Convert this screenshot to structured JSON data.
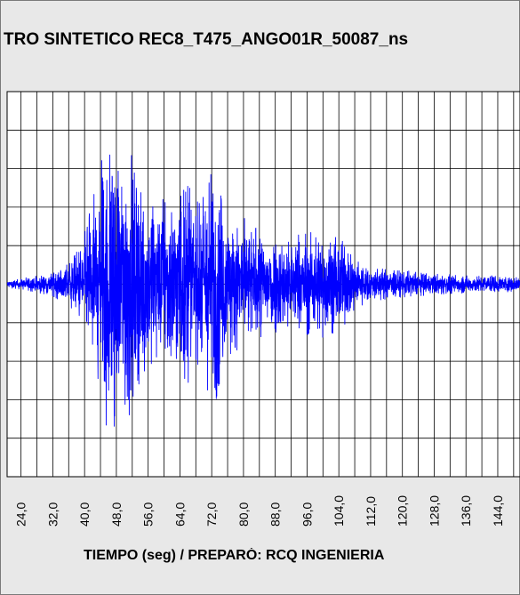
{
  "chart_data": {
    "type": "line",
    "title": "TRO SINTETICO REC8_T475_ANGO01R_50087_ns",
    "xlabel": "TIEMPO (seg) / PREPARÓ: RCQ INGENIERIA",
    "ylabel": "",
    "x_ticks": [
      "24,0",
      "32,0",
      "40,0",
      "48,0",
      "56,0",
      "64,0",
      "72,0",
      "80,0",
      "88,0",
      "96,0",
      "104,0",
      "112,0",
      "120,0",
      "128,0",
      "136,0",
      "144,0"
    ],
    "xlim": [
      20.5,
      149.6
    ],
    "ylim": [
      -1.1,
      1.1
    ],
    "grid": true,
    "line_color": "#0000ff",
    "series": [
      {
        "envelope": [
          [
            20.5,
            0.02
          ],
          [
            24,
            0.03
          ],
          [
            28,
            0.05
          ],
          [
            32,
            0.07
          ],
          [
            36,
            0.12
          ],
          [
            38,
            0.2
          ],
          [
            40,
            0.3
          ],
          [
            42,
            0.5
          ],
          [
            44,
            0.72
          ],
          [
            45,
            0.8
          ],
          [
            46,
            0.85
          ],
          [
            47,
            0.9
          ],
          [
            48,
            0.82
          ],
          [
            49,
            0.7
          ],
          [
            50,
            0.78
          ],
          [
            51,
            0.95
          ],
          [
            52,
            0.72
          ],
          [
            53,
            0.62
          ],
          [
            54,
            0.55
          ],
          [
            56,
            0.52
          ],
          [
            58,
            0.48
          ],
          [
            60,
            0.5
          ],
          [
            62,
            0.52
          ],
          [
            64,
            0.58
          ],
          [
            66,
            0.6
          ],
          [
            68,
            0.48
          ],
          [
            70,
            0.55
          ],
          [
            72,
            0.72
          ],
          [
            73,
            0.78
          ],
          [
            74,
            0.58
          ],
          [
            76,
            0.42
          ],
          [
            78,
            0.38
          ],
          [
            80,
            0.38
          ],
          [
            84,
            0.33
          ],
          [
            88,
            0.3
          ],
          [
            92,
            0.28
          ],
          [
            96,
            0.3
          ],
          [
            100,
            0.32
          ],
          [
            104,
            0.28
          ],
          [
            106,
            0.22
          ],
          [
            108,
            0.15
          ],
          [
            112,
            0.1
          ],
          [
            116,
            0.09
          ],
          [
            120,
            0.08
          ],
          [
            124,
            0.07
          ],
          [
            128,
            0.06
          ],
          [
            132,
            0.06
          ],
          [
            136,
            0.05
          ],
          [
            140,
            0.05
          ],
          [
            144,
            0.05
          ],
          [
            149.6,
            0.04
          ]
        ]
      }
    ]
  }
}
